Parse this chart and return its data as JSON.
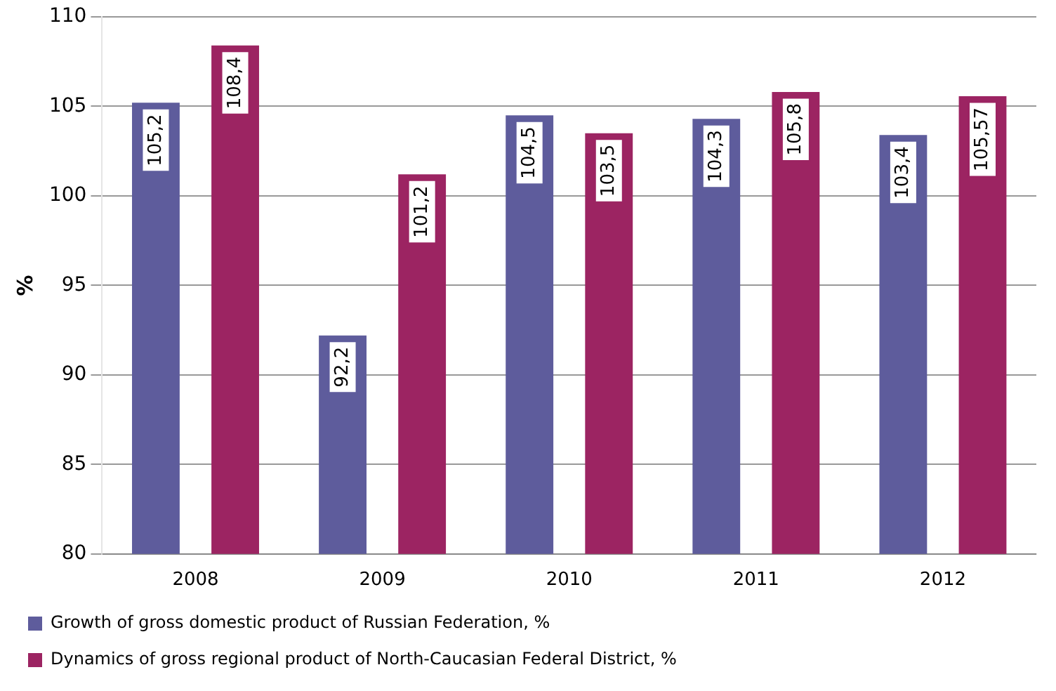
{
  "chart_data": {
    "type": "bar",
    "ylabel": "%",
    "categories": [
      "2008",
      "2009",
      "2010",
      "2011",
      "2012"
    ],
    "series": [
      {
        "name": "Growth of gross domestic product of Russian Federation, %",
        "color": "#5e5c9c",
        "values": [
          105.2,
          92.2,
          104.5,
          104.3,
          103.4
        ],
        "value_labels": [
          "105,2",
          "92,2",
          "104,5",
          "104,3",
          "103,4"
        ]
      },
      {
        "name": "Dynamics of gross regional product of North-Caucasian Federal District, %",
        "color": "#9c2462",
        "values": [
          108.4,
          101.2,
          103.5,
          105.8,
          105.57
        ],
        "value_labels": [
          "108,4",
          "101,2",
          "103,5",
          "105,8",
          "105,57"
        ]
      }
    ],
    "ylim": [
      80,
      110
    ],
    "yticks": [
      80,
      85,
      90,
      95,
      100,
      105,
      110
    ],
    "grid": "y",
    "legend": "bottom"
  }
}
